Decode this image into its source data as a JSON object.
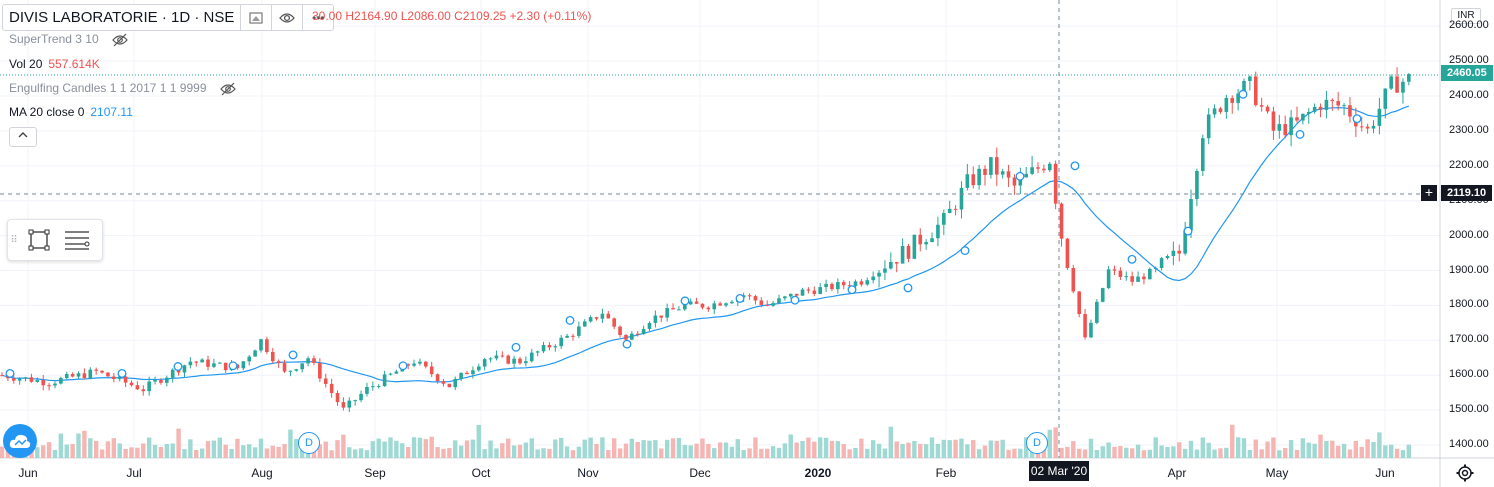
{
  "symbol": {
    "name": "DIVIS LABORATORIE · 1D · NSE"
  },
  "ohlc": {
    "text": "30.00  H2164.90  L2086.00  C2109.25  +2.30 (+0.11%)"
  },
  "indicators": [
    {
      "name": "SuperTrend 3 10",
      "value": "",
      "icon": "eye-off-icon"
    },
    {
      "name": "Vol 20",
      "value": "557.614K",
      "value_color": "#ef5350"
    },
    {
      "name": "Engulfing Candles 1 1 2017 1 1 9999",
      "value": "",
      "icon": "eye-off-icon"
    },
    {
      "name": "MA 20 close 0",
      "value": "2107.11",
      "value_color": "#2196f3"
    }
  ],
  "currency": "INR",
  "price_axis": [
    "2600.00",
    "2500.00",
    "2400.00",
    "2300.00",
    "2200.00",
    "2100.00",
    "2000.00",
    "1900.00",
    "1800.00",
    "1700.00",
    "1600.00",
    "1500.00",
    "1400.00"
  ],
  "last_price_tag": "2460.05",
  "crosshair_price_tag": "2119.10",
  "crosshair_date": "02 Mar '20",
  "time_axis": [
    {
      "label": "Jun"
    },
    {
      "label": "Jul"
    },
    {
      "label": "Aug"
    },
    {
      "label": "Sep"
    },
    {
      "label": "Oct"
    },
    {
      "label": "Nov"
    },
    {
      "label": "Dec"
    },
    {
      "label": "2020"
    },
    {
      "label": "Feb"
    },
    {
      "label": "Apr"
    },
    {
      "label": "May"
    },
    {
      "label": "Jun"
    }
  ],
  "dividend_marker": "D",
  "colors": {
    "up": "#26a69a",
    "down": "#ef5350",
    "ma": "#2196f3",
    "last_price": "#26a69a",
    "crosshair": "#131722"
  },
  "chart_data": {
    "type": "candlestick",
    "ma_period": 20,
    "ylim": [
      1380,
      2640
    ],
    "anchors": [
      [
        0,
        1600
      ],
      [
        20,
        1580
      ],
      [
        40,
        1610
      ],
      [
        60,
        1560
      ],
      [
        80,
        1640
      ],
      [
        100,
        1620
      ],
      [
        110,
        1700
      ],
      [
        120,
        1605
      ],
      [
        130,
        1650
      ],
      [
        145,
        1500
      ],
      [
        155,
        1560
      ],
      [
        175,
        1640
      ],
      [
        190,
        1570
      ],
      [
        205,
        1650
      ],
      [
        220,
        1640
      ],
      [
        240,
        1710
      ],
      [
        255,
        1780
      ],
      [
        265,
        1700
      ],
      [
        275,
        1760
      ],
      [
        290,
        1800
      ],
      [
        300,
        1800
      ],
      [
        315,
        1830
      ],
      [
        325,
        1800
      ],
      [
        340,
        1840
      ],
      [
        350,
        1850
      ],
      [
        365,
        1870
      ],
      [
        375,
        1920
      ],
      [
        385,
        1960
      ],
      [
        390,
        1990
      ],
      [
        400,
        2040
      ],
      [
        410,
        2150
      ],
      [
        420,
        2200
      ],
      [
        430,
        2140
      ],
      [
        445,
        2220
      ],
      [
        450,
        2000
      ],
      [
        460,
        1700
      ],
      [
        470,
        1900
      ],
      [
        480,
        1870
      ],
      [
        490,
        1900
      ],
      [
        500,
        1950
      ],
      [
        510,
        2300
      ],
      [
        520,
        2400
      ],
      [
        530,
        2430
      ],
      [
        540,
        2300
      ],
      [
        550,
        2320
      ],
      [
        560,
        2380
      ],
      [
        570,
        2370
      ],
      [
        580,
        2300
      ],
      [
        590,
        2430
      ],
      [
        598,
        2450
      ]
    ],
    "volume_peaks_m": [
      0.9,
      1.2,
      1.8,
      2.3,
      1.1,
      3.1,
      2.0
    ]
  }
}
